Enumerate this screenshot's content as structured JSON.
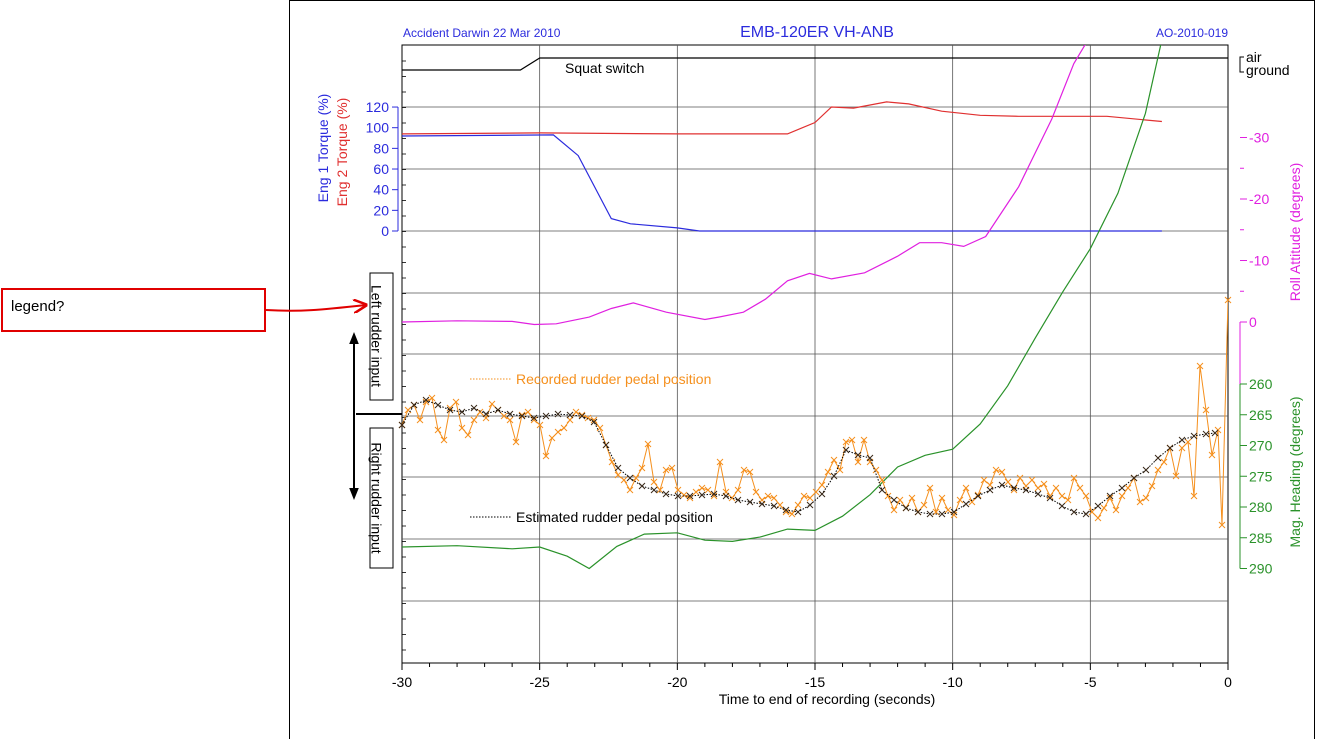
{
  "annotation": {
    "text": "legend?"
  },
  "chart_data": {
    "type": "line",
    "header": {
      "left": "Accident Darwin 22 Mar 2010",
      "center": "EMB-120ER  VH-ANB",
      "right": "AO-2010-019"
    },
    "xlabel": "Time to end of recording (seconds)",
    "xlim": [
      -30,
      0
    ],
    "xticks": [
      -30,
      -25,
      -20,
      -15,
      -10,
      -5,
      0
    ],
    "torque_axis": {
      "label_eng1": "Eng 1 Torque (%)",
      "label_eng2": "Eng 2 Torque (%)",
      "ticks": [
        0,
        20,
        40,
        60,
        80,
        100,
        120
      ],
      "color_eng1": "#2b2bdd",
      "color_eng2": "#e03030"
    },
    "roll_axis": {
      "label": "Roll Attitude (degrees)",
      "ticks": [
        -30,
        -20,
        -10,
        0
      ],
      "color": "#e020e0"
    },
    "heading_axis": {
      "label": "Mag. Heading (degrees)",
      "ticks": [
        260,
        265,
        270,
        275,
        280,
        285,
        290
      ],
      "color": "#2a922a"
    },
    "squat_axis": {
      "labels": [
        "air",
        "ground"
      ],
      "series_label": "Squat switch",
      "color": "#000000"
    },
    "rudder_panel": {
      "left_label": "Left rudder input",
      "right_label": "Right rudder input",
      "recorded_label": "Recorded rudder pedal position",
      "estimated_label": "Estimated rudder pedal position",
      "recorded_color": "#f5901e",
      "estimated_color": "#000000"
    },
    "series": [
      {
        "name": "Squat switch",
        "x": [
          -30,
          -25.7,
          -25,
          0
        ],
        "y": [
          0,
          0,
          1,
          1
        ]
      },
      {
        "name": "Eng 1 Torque (%)",
        "x": [
          -30,
          -24.5,
          -23.6,
          -22.4,
          -21.7,
          -20,
          -19.2,
          -2.4
        ],
        "y": [
          92,
          93,
          73,
          12,
          7,
          3,
          0,
          0
        ]
      },
      {
        "name": "Eng 2 Torque (%)",
        "x": [
          -30,
          -25,
          -20,
          -16,
          -15,
          -14.4,
          -13.6,
          -12.4,
          -11.6,
          -10.4,
          -9,
          -7.6,
          -6,
          -4.4,
          -2.4
        ],
        "y": [
          94,
          95,
          94,
          94,
          105,
          120,
          119,
          125,
          123,
          116,
          112,
          111,
          111,
          111,
          106
        ]
      },
      {
        "name": "Roll Attitude (degrees)",
        "x": [
          -30,
          -28,
          -26,
          -25.2,
          -24.4,
          -23.2,
          -22.4,
          -21.6,
          -20.4,
          -19,
          -18.5,
          -17.6,
          -16.8,
          -16,
          -15.2,
          -14.4,
          -13.2,
          -12,
          -11.2,
          -10.4,
          -9.6,
          -8.8,
          -7.6,
          -6.4,
          -5.6,
          -4.8
        ],
        "y": [
          0,
          0.2,
          0.1,
          -0.4,
          -0.3,
          0.8,
          2.2,
          3.1,
          1.6,
          0.4,
          0.8,
          1.6,
          3.7,
          6.7,
          7.9,
          7,
          8,
          10.7,
          12.9,
          12.9,
          12.3,
          13.9,
          22,
          33,
          42,
          48
        ]
      },
      {
        "name": "Mag. Heading (degrees)",
        "x": [
          -30,
          -28,
          -26,
          -25,
          -24,
          -23.2,
          -22.2,
          -21.2,
          -20,
          -19,
          -18,
          -17,
          -16,
          -15,
          -14,
          -13,
          -12,
          -11,
          -10,
          -9,
          -8,
          -7,
          -6,
          -5,
          -4,
          -3,
          -2,
          -1.2
        ],
        "y": [
          286.5,
          286.3,
          286.8,
          286.5,
          288,
          290,
          286.4,
          284.4,
          284.2,
          285.4,
          285.6,
          284.9,
          283.6,
          283.8,
          281.5,
          278,
          273.5,
          271.6,
          270.6,
          266.5,
          260.3,
          252.5,
          245,
          238,
          229,
          216,
          196,
          165
        ]
      }
    ]
  }
}
